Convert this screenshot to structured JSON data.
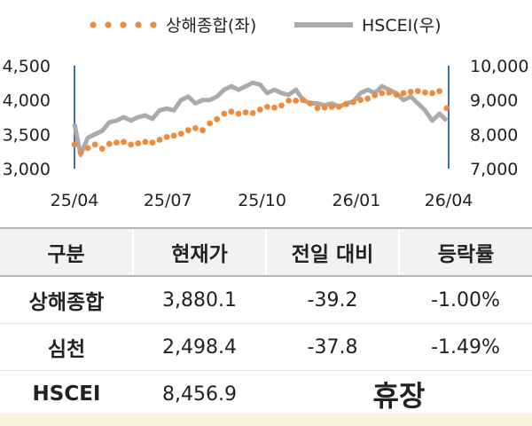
{
  "chart_data": {
    "type": "line",
    "legend": [
      {
        "name": "상해종합(좌)",
        "color": "#ed8b3f",
        "style": "dotted"
      },
      {
        "name": "HSCEI(우)",
        "color": "#ababab",
        "style": "solid"
      }
    ],
    "legend_placement": "top",
    "x_ticks": [
      "25/04",
      "25/07",
      "25/10",
      "26/01",
      "26/04"
    ],
    "y_left": {
      "ticks": [
        "3,000",
        "3,500",
        "4,000",
        "4,500"
      ],
      "range": [
        3000,
        4500
      ]
    },
    "y_right": {
      "ticks": [
        "7,000",
        "8,000",
        "9,000",
        "10,000"
      ],
      "range": [
        7000,
        10000
      ]
    },
    "grid": false,
    "series": [
      {
        "name": "상해종합(좌)",
        "axis": "left",
        "x": [
          "2025-04-01",
          "2025-04-07",
          "2025-04-14",
          "2025-04-21",
          "2025-04-28",
          "2025-05-05",
          "2025-05-12",
          "2025-05-19",
          "2025-05-26",
          "2025-06-02",
          "2025-06-09",
          "2025-06-16",
          "2025-06-23",
          "2025-06-30",
          "2025-07-07",
          "2025-07-14",
          "2025-07-21",
          "2025-07-28",
          "2025-08-04",
          "2025-08-11",
          "2025-08-18",
          "2025-08-25",
          "2025-09-01",
          "2025-09-08",
          "2025-09-15",
          "2025-09-22",
          "2025-09-29",
          "2025-10-06",
          "2025-10-13",
          "2025-10-20",
          "2025-10-27",
          "2025-11-03",
          "2025-11-10",
          "2025-11-17",
          "2025-11-24",
          "2025-12-01",
          "2025-12-08",
          "2025-12-15",
          "2025-12-22",
          "2025-12-29",
          "2026-01-05",
          "2026-01-12",
          "2026-01-19",
          "2026-01-26",
          "2026-02-02",
          "2026-02-09",
          "2026-02-16",
          "2026-02-23",
          "2026-03-02",
          "2026-03-09",
          "2026-03-16",
          "2026-03-23",
          "2026-03-30"
        ],
        "values": [
          3350,
          3240,
          3300,
          3350,
          3290,
          3360,
          3380,
          3390,
          3350,
          3370,
          3390,
          3380,
          3420,
          3460,
          3480,
          3510,
          3560,
          3590,
          3560,
          3660,
          3720,
          3800,
          3830,
          3800,
          3820,
          3810,
          3860,
          3900,
          3890,
          3920,
          3990,
          3990,
          4000,
          3950,
          3880,
          3890,
          3900,
          3900,
          3940,
          3970,
          4000,
          4020,
          4070,
          4100,
          4110,
          4080,
          4100,
          4120,
          4130,
          4110,
          4100,
          4130,
          3880
        ]
      },
      {
        "name": "HSCEI(우)",
        "axis": "right",
        "x": [
          "2025-04-01",
          "2025-04-07",
          "2025-04-14",
          "2025-04-21",
          "2025-04-28",
          "2025-05-05",
          "2025-05-12",
          "2025-05-19",
          "2025-05-26",
          "2025-06-02",
          "2025-06-09",
          "2025-06-16",
          "2025-06-23",
          "2025-06-30",
          "2025-07-07",
          "2025-07-14",
          "2025-07-21",
          "2025-07-28",
          "2025-08-04",
          "2025-08-11",
          "2025-08-18",
          "2025-08-25",
          "2025-09-01",
          "2025-09-08",
          "2025-09-15",
          "2025-09-22",
          "2025-09-29",
          "2025-10-06",
          "2025-10-13",
          "2025-10-20",
          "2025-10-27",
          "2025-11-03",
          "2025-11-10",
          "2025-11-17",
          "2025-11-24",
          "2025-12-01",
          "2025-12-08",
          "2025-12-15",
          "2025-12-22",
          "2025-12-29",
          "2026-01-05",
          "2026-01-12",
          "2026-01-19",
          "2026-01-26",
          "2026-02-02",
          "2026-02-09",
          "2026-02-16",
          "2026-02-23",
          "2026-03-02",
          "2026-03-09",
          "2026-03-16",
          "2026-03-23",
          "2026-03-30"
        ],
        "values": [
          8300,
          7400,
          7900,
          8000,
          8100,
          8350,
          8400,
          8500,
          8400,
          8500,
          8550,
          8450,
          8700,
          8750,
          8700,
          9000,
          9100,
          8900,
          9000,
          9000,
          9100,
          9300,
          9400,
          9300,
          9400,
          9500,
          9450,
          9200,
          9300,
          9200,
          9150,
          9300,
          9000,
          8900,
          8900,
          8850,
          8900,
          8800,
          8900,
          8950,
          9200,
          9300,
          9200,
          9400,
          9300,
          9200,
          9000,
          9100,
          8900,
          8700,
          8400,
          8600,
          8400
        ]
      }
    ]
  },
  "table": {
    "headers": [
      "구분",
      "현재가",
      "전일 대비",
      "등락률"
    ],
    "rows": [
      {
        "name": "상해종합",
        "price": "3,880.1",
        "change": "-39.2",
        "rate": "-1.00%"
      },
      {
        "name": "심천",
        "price": "2,498.4",
        "change": "-37.8",
        "rate": "-1.49%"
      },
      {
        "name": "HSCEI",
        "price": "8,456.9",
        "holiday": "휴장"
      }
    ]
  },
  "colors": {
    "orange_series": "#ed8b3f",
    "gray_series": "#ababab",
    "axis": "#3f6fb5",
    "header_bg": "#f2f2f2",
    "bottom_strip": "#fdf2dc"
  }
}
